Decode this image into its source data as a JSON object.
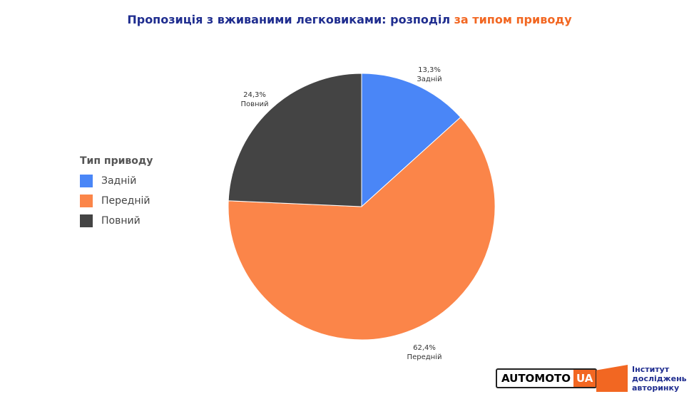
{
  "title": {
    "main": "Пропозиція з вживаними легковиками: розподіл",
    "highlight": "за типом приводу"
  },
  "chart_data": {
    "type": "pie",
    "categories": [
      "Задній",
      "Передній",
      "Повний"
    ],
    "values": [
      13.3,
      62.4,
      24.3
    ],
    "value_labels": [
      "13,3%",
      "62,4%",
      "24,3%"
    ],
    "colors": [
      "#4a86f7",
      "#fb8549",
      "#444444"
    ],
    "legend_title": "Тип приводу",
    "legend_position": "left"
  },
  "logos": {
    "automoto": "AUTOMOTO",
    "automoto_ua": "UA",
    "institute": [
      "Інститут",
      "досліджень",
      "авторинку"
    ]
  },
  "watermark": "Інститут досліджень авторинку"
}
